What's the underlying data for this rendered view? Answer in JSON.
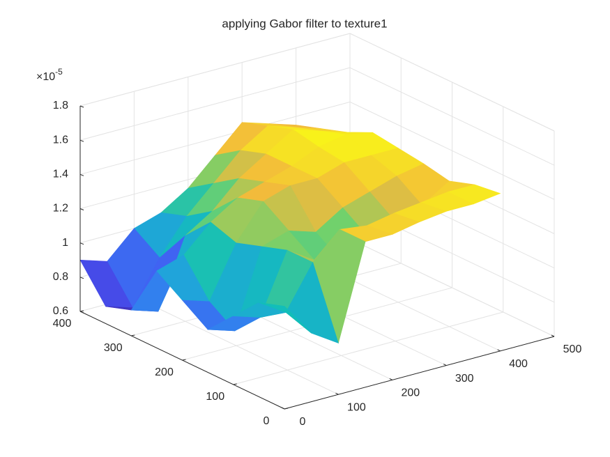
{
  "chart_data": {
    "type": "surface",
    "title": "applying Gabor filter to texture1",
    "z_exponent": {
      "base": "×10",
      "power": "-5"
    },
    "colormap": "parula",
    "grid": true,
    "box": true,
    "x": [
      0,
      50,
      100,
      150,
      200,
      250,
      300,
      350,
      400
    ],
    "y": [
      0,
      50,
      100,
      150,
      200,
      250,
      300,
      350,
      400
    ],
    "z": [
      [
        1.2,
        1.0,
        0.9,
        1.45,
        1.45,
        1.48,
        1.5,
        1.5,
        1.52
      ],
      [
        1.15,
        1.05,
        1.3,
        1.45,
        1.43,
        1.46,
        1.48,
        1.5,
        1.5
      ],
      [
        1.0,
        0.95,
        1.3,
        1.2,
        1.15,
        1.25,
        1.3,
        1.35,
        1.45
      ],
      [
        0.85,
        0.8,
        1.25,
        1.3,
        1.25,
        1.35,
        1.4,
        1.45,
        1.48
      ],
      [
        0.95,
        0.9,
        1.2,
        1.4,
        1.45,
        1.45,
        1.5,
        1.5,
        1.5
      ],
      [
        1.05,
        1.1,
        1.25,
        1.35,
        1.4,
        1.45,
        1.52,
        1.55,
        1.52
      ],
      [
        0.75,
        0.7,
        1.1,
        1.2,
        1.35,
        1.45,
        1.55,
        1.5,
        1.45
      ],
      [
        0.7,
        0.65,
        0.9,
        1.1,
        1.25,
        1.4,
        1.5,
        1.45,
        1.4
      ],
      [
        0.9,
        0.85,
        1.0,
        1.05,
        1.15,
        1.3,
        1.45,
        1.4,
        1.35
      ]
    ],
    "xlim": [
      0,
      500
    ],
    "xticks": [
      0,
      100,
      200,
      300,
      400,
      500
    ],
    "ylim": [
      0,
      400
    ],
    "yticks": [
      0,
      100,
      200,
      300,
      400
    ],
    "zlim": [
      0.6,
      1.8
    ],
    "zticks": [
      0.6,
      0.8,
      1,
      1.2,
      1.4,
      1.6,
      1.8
    ]
  }
}
